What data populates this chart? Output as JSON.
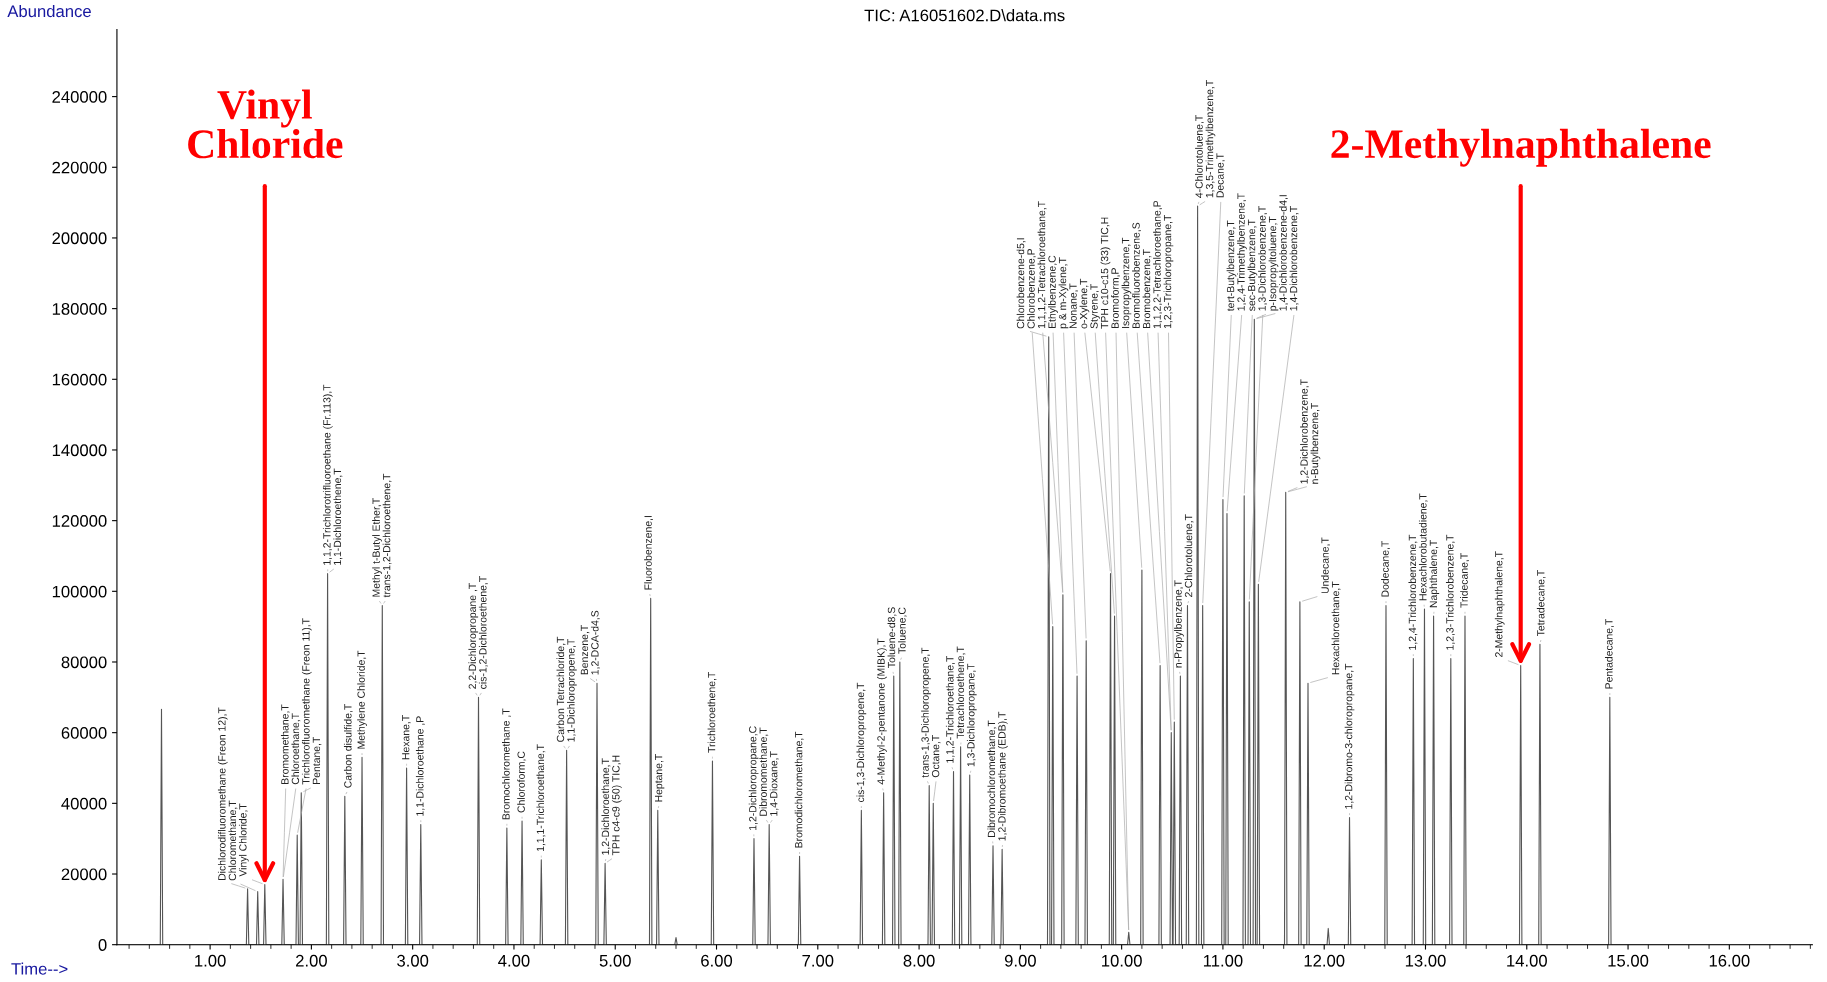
{
  "chart_data": {
    "type": "line",
    "title": "TIC: A16051602.D\\data.ms",
    "xlabel": "Time-->",
    "ylabel": "Abundance",
    "xlim": [
      0.08,
      16.82
    ],
    "ylim": [
      0,
      259000
    ],
    "xticks": [
      {
        "value": 1,
        "label": "1.00"
      },
      {
        "value": 2,
        "label": "2.00"
      },
      {
        "value": 3,
        "label": "3.00"
      },
      {
        "value": 4,
        "label": "4.00"
      },
      {
        "value": 5,
        "label": "5.00"
      },
      {
        "value": 6,
        "label": "6.00"
      },
      {
        "value": 7,
        "label": "7.00"
      },
      {
        "value": 8,
        "label": "8.00"
      },
      {
        "value": 9,
        "label": "9.00"
      },
      {
        "value": 10,
        "label": "10.00"
      },
      {
        "value": 11,
        "label": "11.00"
      },
      {
        "value": 12,
        "label": "12.00"
      },
      {
        "value": 13,
        "label": "13.00"
      },
      {
        "value": 14,
        "label": "14.00"
      },
      {
        "value": 15,
        "label": "15.00"
      },
      {
        "value": 16,
        "label": "16.00"
      }
    ],
    "yticks": [
      0,
      20000,
      40000,
      60000,
      80000,
      100000,
      120000,
      140000,
      160000,
      180000,
      200000,
      220000,
      240000
    ],
    "series": [
      {
        "color": "#555555",
        "x": [
          0.08,
          0.508,
          0.52,
          0.532,
          1.358,
          1.37,
          1.382,
          1.458,
          1.47,
          1.482,
          1.528,
          1.54,
          1.552,
          1.708,
          1.72,
          1.732,
          1.848,
          1.86,
          1.872,
          1.888,
          1.9,
          1.912,
          2.148,
          2.16,
          2.172,
          2.318,
          2.33,
          2.342,
          2.488,
          2.5,
          2.512,
          2.688,
          2.7,
          2.712,
          2.928,
          2.94,
          2.952,
          3.068,
          3.08,
          3.092,
          3.638,
          3.65,
          3.662,
          3.918,
          3.93,
          3.942,
          4.068,
          4.08,
          4.092,
          4.258,
          4.27,
          4.282,
          4.508,
          4.52,
          4.532,
          4.808,
          4.82,
          4.832,
          4.888,
          4.9,
          4.912,
          5.338,
          5.35,
          5.362,
          5.408,
          5.42,
          5.432,
          5.588,
          5.6,
          5.612,
          5.948,
          5.96,
          5.972,
          6.358,
          6.37,
          6.382,
          6.508,
          6.52,
          6.532,
          6.808,
          6.82,
          6.832,
          7.418,
          7.43,
          7.442,
          7.638,
          7.65,
          7.662,
          7.738,
          7.75,
          7.762,
          7.798,
          7.81,
          7.822,
          8.088,
          8.1,
          8.112,
          8.128,
          8.14,
          8.152,
          8.328,
          8.34,
          8.352,
          8.398,
          8.41,
          8.422,
          8.488,
          8.5,
          8.512,
          8.718,
          8.73,
          8.742,
          8.808,
          8.82,
          8.832,
          9.268,
          9.28,
          9.292,
          9.308,
          9.32,
          9.332,
          9.408,
          9.42,
          9.432,
          9.548,
          9.56,
          9.572,
          9.638,
          9.65,
          9.662,
          9.878,
          9.89,
          9.902,
          9.918,
          9.93,
          9.942,
          10.058,
          10.07,
          10.082,
          10.188,
          10.2,
          10.212,
          10.368,
          10.38,
          10.392,
          10.478,
          10.49,
          10.502,
          10.508,
          10.52,
          10.532,
          10.568,
          10.58,
          10.592,
          10.638,
          10.65,
          10.662,
          10.738,
          10.75,
          10.762,
          10.788,
          10.8,
          10.812,
          10.988,
          11.0,
          11.012,
          11.028,
          11.04,
          11.052,
          11.198,
          11.21,
          11.222,
          11.248,
          11.26,
          11.272,
          11.298,
          11.31,
          11.322,
          11.338,
          11.35,
          11.362,
          11.608,
          11.62,
          11.632,
          11.748,
          11.76,
          11.772,
          11.828,
          11.84,
          11.852,
          12.028,
          12.04,
          12.052,
          12.238,
          12.25,
          12.262,
          12.598,
          12.61,
          12.622,
          12.868,
          12.88,
          12.892,
          12.978,
          12.99,
          13.002,
          13.068,
          13.08,
          13.092,
          13.238,
          13.25,
          13.262,
          13.378,
          13.39,
          13.402,
          13.928,
          13.94,
          13.952,
          14.118,
          14.13,
          14.142,
          14.808,
          14.82,
          14.832,
          16.82
        ],
        "values": [
          0,
          0,
          66600,
          0,
          0,
          15800,
          0,
          0,
          15000,
          0,
          0,
          17000,
          0,
          0,
          18500,
          0,
          0,
          31000,
          0,
          0,
          43000,
          0,
          0,
          105000,
          0,
          0,
          42000,
          0,
          0,
          53000,
          0,
          0,
          96000,
          0,
          0,
          50000,
          0,
          0,
          34000,
          0,
          0,
          70000,
          0,
          0,
          33000,
          0,
          0,
          35000,
          0,
          0,
          24000,
          0,
          0,
          55000,
          0,
          0,
          74000,
          0,
          0,
          23000,
          0,
          0,
          98000,
          0,
          0,
          38000,
          0,
          0,
          2000,
          0,
          0,
          52000,
          0,
          0,
          30000,
          0,
          0,
          34000,
          0,
          0,
          25000,
          0,
          0,
          38000,
          0,
          0,
          43000,
          0,
          0,
          76000,
          0,
          0,
          80000,
          0,
          0,
          45000,
          0,
          0,
          40000,
          0,
          0,
          49000,
          0,
          0,
          56000,
          0,
          0,
          48000,
          0,
          0,
          28000,
          0,
          0,
          27000,
          0,
          0,
          172000,
          0,
          0,
          90000,
          0,
          0,
          99000,
          0,
          0,
          76000,
          0,
          0,
          86000,
          0,
          0,
          105000,
          0,
          0,
          93000,
          0,
          0,
          3500,
          0,
          0,
          106000,
          0,
          0,
          79000,
          0,
          0,
          60000,
          0,
          0,
          63000,
          0,
          0,
          76000,
          0,
          0,
          96000,
          0,
          0,
          209000,
          0,
          0,
          96000,
          0,
          0,
          126000,
          0,
          0,
          122000,
          0,
          0,
          127000,
          0,
          0,
          97000,
          0,
          0,
          177000,
          0,
          0,
          102000,
          0,
          0,
          128000,
          0,
          0,
          97000,
          0,
          0,
          74000,
          0,
          0,
          4600,
          0,
          0,
          36000,
          0,
          0,
          96000,
          0,
          0,
          81000,
          0,
          0,
          95000,
          0,
          0,
          93000,
          0,
          0,
          81000,
          0,
          0,
          93000,
          0,
          0,
          79000,
          0,
          0,
          85000,
          0,
          0,
          70000,
          0,
          0
        ]
      }
    ],
    "annotations": [
      {
        "text": "Dichlorodifluoromethane (Freon 12),T",
        "x": 1.37,
        "y": 15800
      },
      {
        "text": "Chloromethane,T",
        "x": 1.47,
        "y": 15000
      },
      {
        "text": "Vinyl Chloride,T",
        "x": 1.54,
        "y": 17000
      },
      {
        "text": "Bromomethane,T",
        "x": 1.72,
        "y": 18500
      },
      {
        "text": "Chloroethane,T",
        "x": 1.72,
        "y": 18500
      },
      {
        "text": "Trichlorofluoromethane (Freon 11),T",
        "x": 1.86,
        "y": 31000
      },
      {
        "text": "Pentane,T",
        "x": 1.9,
        "y": 43000
      },
      {
        "text": "1,1,2-Trichlorotrifluoroethane (Fr.113),T",
        "x": 2.16,
        "y": 105000
      },
      {
        "text": "1,1-Dichloroethene,T",
        "x": 2.16,
        "y": 105000
      },
      {
        "text": "Carbon disulfide,T",
        "x": 2.33,
        "y": 42000
      },
      {
        "text": "Methylene Chloride,T",
        "x": 2.5,
        "y": 53000
      },
      {
        "text": "Methyl t-Butyl Ether,T",
        "x": 2.7,
        "y": 96000
      },
      {
        "text": "trans-1,2-Dichloroethene,T",
        "x": 2.7,
        "y": 96000
      },
      {
        "text": "Hexane,T",
        "x": 2.94,
        "y": 50000
      },
      {
        "text": "1,1-Dichloroethane ,P",
        "x": 3.08,
        "y": 34000
      },
      {
        "text": "2,2-Dichloropropane ,T",
        "x": 3.65,
        "y": 70000
      },
      {
        "text": "cis-1,2-Dichloroethene,T",
        "x": 3.65,
        "y": 70000
      },
      {
        "text": "Bromochloromethane ,T",
        "x": 3.93,
        "y": 33000
      },
      {
        "text": "Chloroform,C",
        "x": 4.08,
        "y": 35000
      },
      {
        "text": "1,1,1-Trichloroethane,T",
        "x": 4.27,
        "y": 24000
      },
      {
        "text": "Carbon Tetrachloride,T",
        "x": 4.52,
        "y": 55000
      },
      {
        "text": "1,1-Dichloropropene,T",
        "x": 4.52,
        "y": 55000
      },
      {
        "text": "Benzene,T",
        "x": 4.82,
        "y": 74000
      },
      {
        "text": "1,2-DCA-d4,S",
        "x": 4.82,
        "y": 74000
      },
      {
        "text": "1,2-Dichloroethane,T",
        "x": 4.9,
        "y": 23000
      },
      {
        "text": "TPH c4-c9 (50) TIC,H",
        "x": 4.9,
        "y": 23000
      },
      {
        "text": "Fluorobenzene,I",
        "x": 5.35,
        "y": 98000
      },
      {
        "text": "Heptane,T",
        "x": 5.42,
        "y": 38000
      },
      {
        "text": "Trichloroethene,T",
        "x": 5.96,
        "y": 52000
      },
      {
        "text": "1,2-Dichloropropane,C",
        "x": 6.37,
        "y": 30000
      },
      {
        "text": "Dibromomethane,T",
        "x": 6.52,
        "y": 34000
      },
      {
        "text": "1,4-Dioxane,T",
        "x": 6.52,
        "y": 34000
      },
      {
        "text": "Bromodichloromethane,T",
        "x": 6.82,
        "y": 25000
      },
      {
        "text": "cis-1,3-Dichloropropene,T",
        "x": 7.43,
        "y": 38000
      },
      {
        "text": "4-Methyl-2-pentanone (MIBK),T",
        "x": 7.65,
        "y": 43000
      },
      {
        "text": "Toluene-d8,S",
        "x": 7.75,
        "y": 76000
      },
      {
        "text": "Toluene,C",
        "x": 7.81,
        "y": 80000
      },
      {
        "text": "trans-1,3-Dichloropropene,T",
        "x": 8.1,
        "y": 45000
      },
      {
        "text": "Octane,T",
        "x": 8.14,
        "y": 40000
      },
      {
        "text": "1,1,2-Trichloroethane,T",
        "x": 8.34,
        "y": 49000
      },
      {
        "text": "Tetrachloroethene,T",
        "x": 8.41,
        "y": 56000
      },
      {
        "text": "1,3-Dichloropropane,T",
        "x": 8.5,
        "y": 48000
      },
      {
        "text": "Dibromochloromethane,T",
        "x": 8.73,
        "y": 28000
      },
      {
        "text": "1,2-Dibromoethane (EDB),T",
        "x": 8.82,
        "y": 27000
      },
      {
        "text": "Chlorobenzene-d5,I",
        "x": 9.28,
        "y": 172000
      },
      {
        "text": "Chlorobenzene,P",
        "x": 9.32,
        "y": 90000
      },
      {
        "text": "1,1,1,2-Tetrachloroethane,T",
        "x": 9.42,
        "y": 99000
      },
      {
        "text": "Ethylbenzene,C",
        "x": 9.42,
        "y": 99000
      },
      {
        "text": "p & m-Xylene,T",
        "x": 9.56,
        "y": 76000
      },
      {
        "text": "Nonane,T",
        "x": 9.65,
        "y": 86000
      },
      {
        "text": "o-Xylene,T",
        "x": 9.89,
        "y": 105000
      },
      {
        "text": "Styrene,T",
        "x": 9.93,
        "y": 93000
      },
      {
        "text": "TPH c10-c15 (33) TIC,H",
        "x": 10.07,
        "y": 3500
      },
      {
        "text": "Bromoform,P",
        "x": 10.07,
        "y": 3500
      },
      {
        "text": "Isopropylbenzene,T",
        "x": 10.2,
        "y": 106000
      },
      {
        "text": "Bromofluorobenzene,S",
        "x": 10.38,
        "y": 79000
      },
      {
        "text": "Bromobenzene,T",
        "x": 10.49,
        "y": 60000
      },
      {
        "text": "1,1,2,2-Tetrachloroethane,P",
        "x": 10.49,
        "y": 60000
      },
      {
        "text": "1,2,3-Trichloropropane,T",
        "x": 10.52,
        "y": 63000
      },
      {
        "text": "n-Propylbenzene,T",
        "x": 10.58,
        "y": 76000
      },
      {
        "text": "2-Chlorotoluene,T",
        "x": 10.65,
        "y": 96000
      },
      {
        "text": "4-Chlorotoluene,T",
        "x": 10.75,
        "y": 209000
      },
      {
        "text": "1,3,5-Trimethylbenzene,T",
        "x": 10.75,
        "y": 209000
      },
      {
        "text": "Decane,T",
        "x": 10.8,
        "y": 96000
      },
      {
        "text": "tert-Butylbenzene,T",
        "x": 11.0,
        "y": 126000
      },
      {
        "text": "1,2,4-Trimethylbenzene,T",
        "x": 11.04,
        "y": 122000
      },
      {
        "text": "sec-Butylbenzene,T",
        "x": 11.21,
        "y": 127000
      },
      {
        "text": "1,3-Dichlorobenzene,T",
        "x": 11.26,
        "y": 97000
      },
      {
        "text": "p-Isopropyltoluene,T",
        "x": 11.31,
        "y": 177000
      },
      {
        "text": "1,4-Dichlorobenzene-d4,I",
        "x": 11.31,
        "y": 177000
      },
      {
        "text": "1,4-Dichlorobenzene,T",
        "x": 11.35,
        "y": 102000
      },
      {
        "text": "1,2-Dichlorobenzene,T",
        "x": 11.62,
        "y": 128000
      },
      {
        "text": "n-Butylbenzene,T",
        "x": 11.62,
        "y": 128000
      },
      {
        "text": "Undecane,T",
        "x": 11.76,
        "y": 97000
      },
      {
        "text": "Hexachloroethane,T",
        "x": 11.84,
        "y": 74000
      },
      {
        "text": "1,2-Dibromo-3-chloropropane,T",
        "x": 12.25,
        "y": 36000
      },
      {
        "text": "Dodecane,T",
        "x": 12.61,
        "y": 96000
      },
      {
        "text": "1,2,4-Trichlorobenzene,T",
        "x": 12.88,
        "y": 81000
      },
      {
        "text": "Hexachlorobutadiene,T",
        "x": 12.99,
        "y": 95000
      },
      {
        "text": "Naphthalene,T",
        "x": 13.08,
        "y": 93000
      },
      {
        "text": "1,2,3-Trichlorobenzene,T",
        "x": 13.25,
        "y": 81000
      },
      {
        "text": "Tridecane,T",
        "x": 13.39,
        "y": 93000
      },
      {
        "text": "2-Methylnaphthalene,T",
        "x": 13.94,
        "y": 79000
      },
      {
        "text": "Tetradecane,T",
        "x": 14.13,
        "y": 85000
      },
      {
        "text": "Pentadecane,T",
        "x": 14.82,
        "y": 70000
      },
      {
        "text": "Vinyl\nChloride",
        "x": 1.54,
        "y": 17000
      },
      {
        "text": "2-Methylnaphthalene",
        "x": 13.94,
        "y": 79000
      }
    ]
  }
}
